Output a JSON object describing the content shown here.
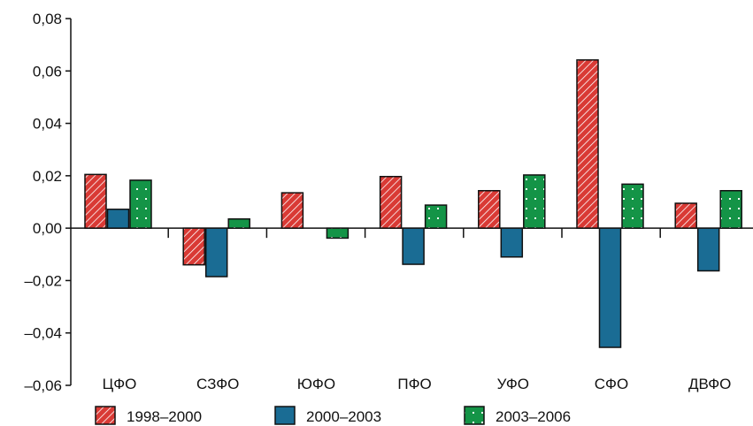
{
  "chart_data": {
    "type": "bar",
    "categories": [
      "ЦФО",
      "СЗФО",
      "ЮФО",
      "ПФО",
      "УФО",
      "СФО",
      "ДВФО"
    ],
    "series": [
      {
        "name": "1998–2000",
        "color": "#d93a35",
        "pattern": "diagonal-hatch",
        "values": [
          0.0205,
          -0.014,
          0.0135,
          0.0197,
          0.0143,
          0.0642,
          0.0095
        ]
      },
      {
        "name": "2000–2003",
        "color": "#1a6c94",
        "pattern": "solid",
        "values": [
          0.0072,
          -0.0185,
          0.0,
          -0.0138,
          -0.011,
          -0.0455,
          -0.0163
        ]
      },
      {
        "name": "2003–2006",
        "color": "#149447",
        "pattern": "dots",
        "values": [
          0.0183,
          0.0035,
          -0.0038,
          0.0088,
          0.0203,
          0.0168,
          0.0143
        ]
      }
    ],
    "ylim": [
      -0.06,
      0.08
    ],
    "yticks": [
      0.08,
      0.06,
      0.04,
      0.02,
      0.0,
      -0.02,
      -0.04,
      -0.06
    ],
    "ytick_labels": [
      "0,08",
      "0,06",
      "0,04",
      "0,02",
      "0,00",
      "–0,02",
      "–0,04",
      "–0,06"
    ],
    "legend": {
      "position": "bottom"
    },
    "grid": false
  }
}
